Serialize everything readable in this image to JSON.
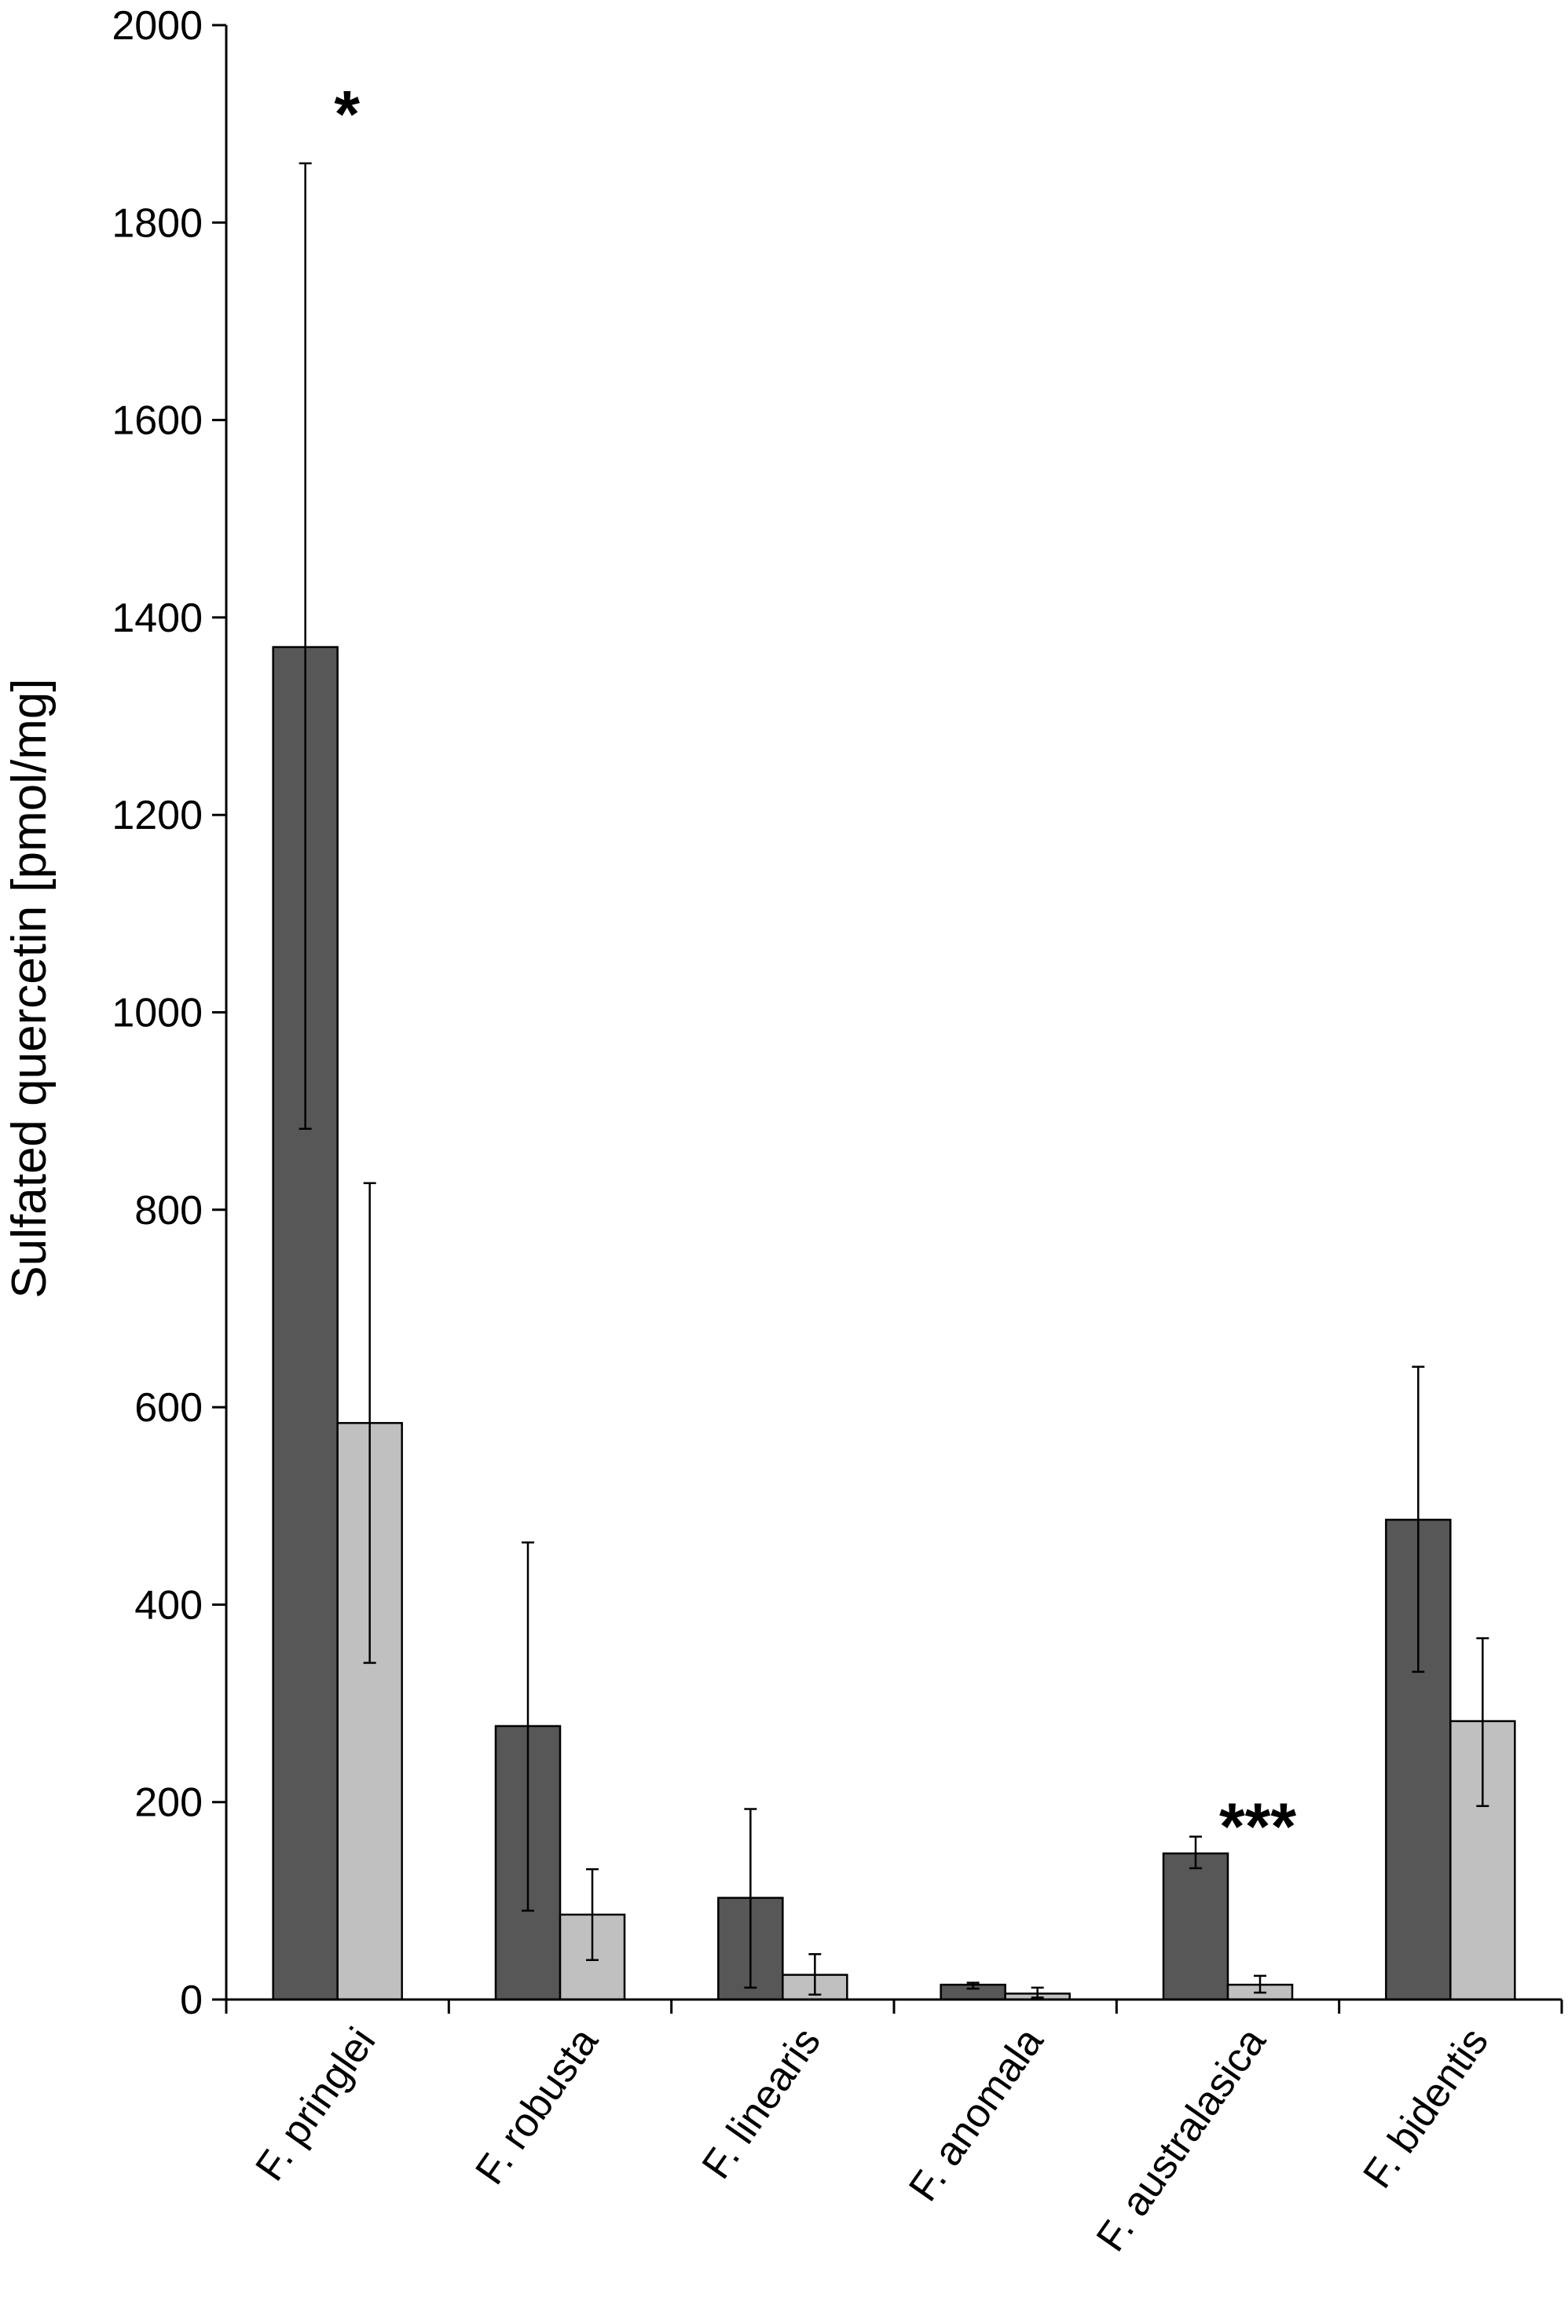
{
  "chart_data": {
    "type": "bar",
    "title": "",
    "xlabel": "",
    "ylabel": "Sulfated quercetin [pmol/mg]",
    "ylim": [
      0,
      2000
    ],
    "yticks": [
      "0",
      "200",
      "400",
      "600",
      "800",
      "1000",
      "1200",
      "1400",
      "1600",
      "1800",
      "2000"
    ],
    "grid": false,
    "legend": "none",
    "categories": [
      "F. pringlei",
      "F. robusta",
      "F. linearis",
      "F. anomala",
      "F. australasica",
      "F. bidentis"
    ],
    "series": [
      {
        "color": "#575757",
        "values": [
          1370,
          277,
          103,
          15,
          148,
          486
        ],
        "error_low": [
          882,
          90,
          12,
          11,
          133,
          332
        ],
        "error_high": [
          1860,
          463,
          193,
          17,
          165,
          641
        ]
      },
      {
        "color": "#c0c0c0",
        "values": [
          584,
          86,
          25,
          6,
          15,
          282
        ],
        "error_low": [
          341,
          40,
          5,
          2,
          7,
          196
        ],
        "error_high": [
          827,
          132,
          46,
          12,
          24,
          366
        ]
      }
    ],
    "annotations": [
      {
        "category_index": 0,
        "text": "*",
        "y": 1860
      },
      {
        "category_index": 4,
        "text": "***",
        "y": 165
      }
    ]
  }
}
